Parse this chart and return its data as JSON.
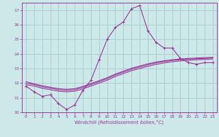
{
  "xlabel": "Windchill (Refroidissement éolien,°C)",
  "bg_color": "#cce8e8",
  "grid_color": "#aacccc",
  "line_color": "#993399",
  "x": [
    0,
    1,
    2,
    3,
    4,
    5,
    6,
    7,
    8,
    9,
    10,
    11,
    12,
    13,
    14,
    15,
    16,
    17,
    18,
    19,
    20,
    21,
    22,
    23
  ],
  "y_main": [
    11.8,
    11.4,
    11.1,
    11.2,
    10.6,
    10.2,
    10.5,
    11.5,
    12.2,
    13.6,
    15.0,
    15.8,
    16.2,
    17.1,
    17.3,
    15.6,
    14.8,
    14.4,
    14.4,
    13.7,
    13.4,
    13.3,
    13.4,
    13.4
  ],
  "y_smooth1": [
    11.9,
    11.8,
    11.65,
    11.55,
    11.45,
    11.4,
    11.45,
    11.6,
    11.8,
    12.0,
    12.2,
    12.45,
    12.65,
    12.85,
    13.0,
    13.15,
    13.28,
    13.38,
    13.46,
    13.52,
    13.56,
    13.6,
    13.62,
    13.65
  ],
  "y_smooth2": [
    12.0,
    11.9,
    11.75,
    11.65,
    11.55,
    11.5,
    11.55,
    11.7,
    11.9,
    12.1,
    12.3,
    12.55,
    12.75,
    12.95,
    13.1,
    13.25,
    13.38,
    13.47,
    13.55,
    13.6,
    13.64,
    13.67,
    13.69,
    13.72
  ],
  "y_smooth3": [
    12.1,
    11.95,
    11.82,
    11.72,
    11.62,
    11.58,
    11.62,
    11.77,
    11.97,
    12.17,
    12.37,
    12.62,
    12.82,
    13.02,
    13.17,
    13.32,
    13.44,
    13.53,
    13.6,
    13.65,
    13.69,
    13.72,
    13.74,
    13.77
  ],
  "ylim": [
    10.0,
    17.5
  ],
  "xlim": [
    -0.5,
    23.5
  ],
  "yticks": [
    10,
    11,
    12,
    13,
    14,
    15,
    16,
    17
  ],
  "xticks": [
    0,
    1,
    2,
    3,
    4,
    5,
    6,
    7,
    8,
    9,
    10,
    11,
    12,
    13,
    14,
    15,
    16,
    17,
    18,
    19,
    20,
    21,
    22,
    23
  ]
}
